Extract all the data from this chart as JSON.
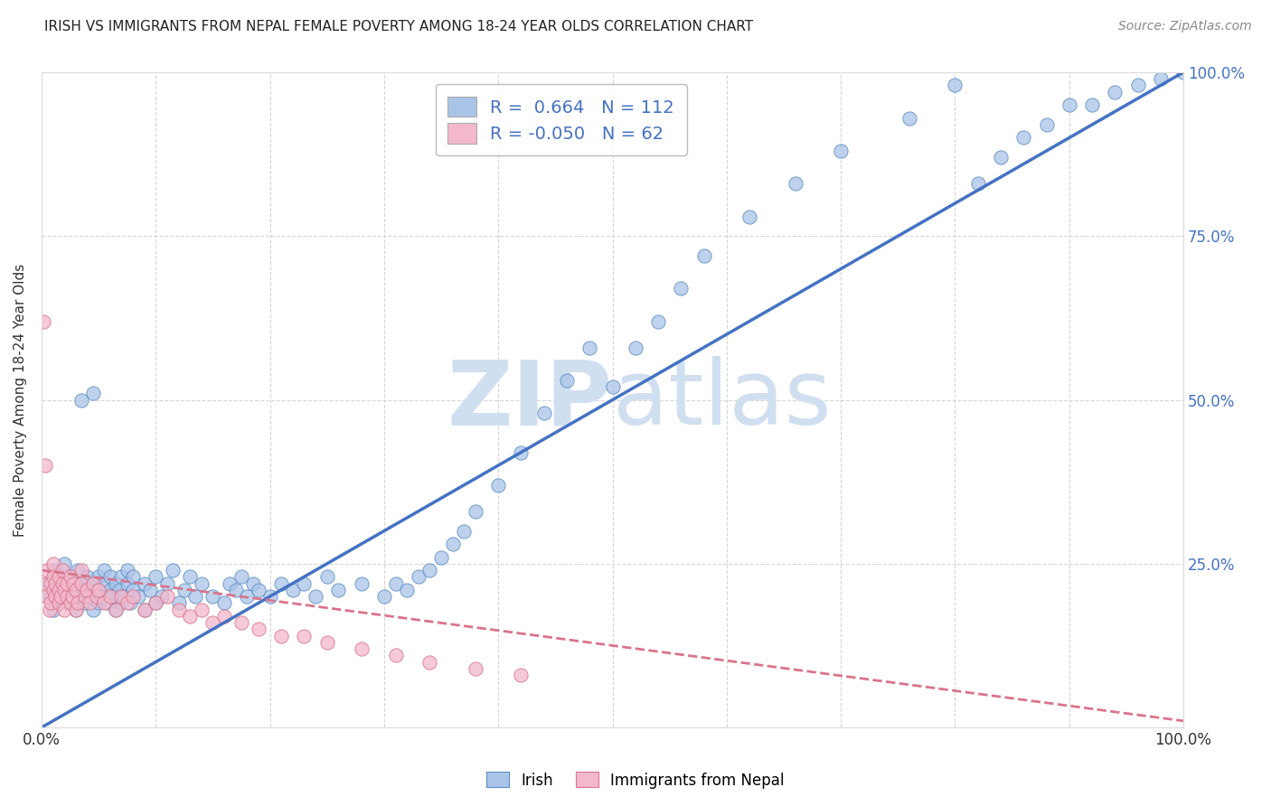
{
  "title": "IRISH VS IMMIGRANTS FROM NEPAL FEMALE POVERTY AMONG 18-24 YEAR OLDS CORRELATION CHART",
  "source": "Source: ZipAtlas.com",
  "ylabel": "Female Poverty Among 18-24 Year Olds",
  "legend_irish_label": "Irish",
  "legend_nepal_label": "Immigrants from Nepal",
  "irish_R": 0.664,
  "irish_N": 112,
  "nepal_R": -0.05,
  "nepal_N": 62,
  "irish_color": "#aac4e8",
  "irish_edge_color": "#5b8ec4",
  "irish_line_color": "#4472c4",
  "nepal_color": "#f4b8cc",
  "nepal_edge_color": "#d9748a",
  "nepal_line_color": "#d9748a",
  "axis_color": "#4472c4",
  "text_color": "#333333",
  "grid_color": "#cccccc",
  "background_color": "#ffffff",
  "watermark_color": "#d0dff0",
  "xmin": 0.0,
  "xmax": 1.0,
  "ymin": 0.0,
  "ymax": 1.0,
  "x_ticks": [
    0.0,
    0.1,
    0.2,
    0.3,
    0.4,
    0.5,
    0.6,
    0.7,
    0.8,
    0.9,
    1.0
  ],
  "y_ticks": [
    0.0,
    0.25,
    0.5,
    0.75,
    1.0
  ],
  "irish_line_x": [
    0.0,
    1.0
  ],
  "irish_line_y": [
    0.0,
    1.0
  ],
  "nepal_line_x": [
    0.0,
    1.0
  ],
  "nepal_line_y": [
    0.24,
    0.01
  ],
  "irish_scatter_x": [
    0.005,
    0.008,
    0.01,
    0.01,
    0.012,
    0.015,
    0.015,
    0.018,
    0.02,
    0.02,
    0.022,
    0.025,
    0.025,
    0.028,
    0.03,
    0.03,
    0.032,
    0.035,
    0.035,
    0.038,
    0.04,
    0.04,
    0.042,
    0.045,
    0.045,
    0.048,
    0.05,
    0.05,
    0.052,
    0.055,
    0.055,
    0.058,
    0.06,
    0.06,
    0.062,
    0.065,
    0.065,
    0.068,
    0.07,
    0.07,
    0.072,
    0.075,
    0.075,
    0.078,
    0.08,
    0.08,
    0.085,
    0.09,
    0.09,
    0.095,
    0.1,
    0.1,
    0.105,
    0.11,
    0.115,
    0.12,
    0.125,
    0.13,
    0.135,
    0.14,
    0.15,
    0.16,
    0.165,
    0.17,
    0.175,
    0.18,
    0.185,
    0.19,
    0.2,
    0.21,
    0.22,
    0.23,
    0.24,
    0.25,
    0.26,
    0.28,
    0.3,
    0.31,
    0.32,
    0.33,
    0.34,
    0.35,
    0.36,
    0.37,
    0.38,
    0.4,
    0.42,
    0.44,
    0.46,
    0.48,
    0.5,
    0.52,
    0.54,
    0.56,
    0.58,
    0.62,
    0.66,
    0.7,
    0.76,
    0.8,
    0.82,
    0.84,
    0.86,
    0.88,
    0.9,
    0.92,
    0.94,
    0.96,
    0.98,
    1.0,
    0.035,
    0.045
  ],
  "irish_scatter_y": [
    0.22,
    0.2,
    0.24,
    0.18,
    0.21,
    0.19,
    0.23,
    0.2,
    0.22,
    0.25,
    0.19,
    0.21,
    0.23,
    0.2,
    0.22,
    0.18,
    0.24,
    0.2,
    0.22,
    0.19,
    0.21,
    0.23,
    0.2,
    0.22,
    0.18,
    0.21,
    0.19,
    0.23,
    0.2,
    0.22,
    0.24,
    0.19,
    0.21,
    0.23,
    0.2,
    0.22,
    0.18,
    0.21,
    0.19,
    0.23,
    0.2,
    0.22,
    0.24,
    0.19,
    0.21,
    0.23,
    0.2,
    0.22,
    0.18,
    0.21,
    0.19,
    0.23,
    0.2,
    0.22,
    0.24,
    0.19,
    0.21,
    0.23,
    0.2,
    0.22,
    0.2,
    0.19,
    0.22,
    0.21,
    0.23,
    0.2,
    0.22,
    0.21,
    0.2,
    0.22,
    0.21,
    0.22,
    0.2,
    0.23,
    0.21,
    0.22,
    0.2,
    0.22,
    0.21,
    0.23,
    0.24,
    0.26,
    0.28,
    0.3,
    0.33,
    0.37,
    0.42,
    0.48,
    0.53,
    0.58,
    0.52,
    0.58,
    0.62,
    0.67,
    0.72,
    0.78,
    0.83,
    0.88,
    0.93,
    0.98,
    0.83,
    0.87,
    0.9,
    0.92,
    0.95,
    0.95,
    0.97,
    0.98,
    0.99,
    1.0,
    0.5,
    0.51
  ],
  "nepal_scatter_x": [
    0.003,
    0.005,
    0.005,
    0.007,
    0.008,
    0.008,
    0.01,
    0.01,
    0.01,
    0.012,
    0.012,
    0.015,
    0.015,
    0.015,
    0.017,
    0.018,
    0.018,
    0.02,
    0.02,
    0.022,
    0.022,
    0.025,
    0.025,
    0.027,
    0.028,
    0.03,
    0.03,
    0.032,
    0.035,
    0.035,
    0.038,
    0.04,
    0.042,
    0.045,
    0.048,
    0.05,
    0.055,
    0.06,
    0.065,
    0.07,
    0.075,
    0.08,
    0.09,
    0.1,
    0.11,
    0.12,
    0.13,
    0.14,
    0.15,
    0.16,
    0.175,
    0.19,
    0.21,
    0.23,
    0.25,
    0.28,
    0.31,
    0.34,
    0.38,
    0.42,
    0.002,
    0.003
  ],
  "nepal_scatter_y": [
    0.22,
    0.2,
    0.24,
    0.18,
    0.22,
    0.19,
    0.21,
    0.23,
    0.25,
    0.2,
    0.22,
    0.19,
    0.21,
    0.23,
    0.2,
    0.22,
    0.24,
    0.18,
    0.21,
    0.2,
    0.22,
    0.19,
    0.23,
    0.2,
    0.22,
    0.18,
    0.21,
    0.19,
    0.22,
    0.24,
    0.2,
    0.21,
    0.19,
    0.22,
    0.2,
    0.21,
    0.19,
    0.2,
    0.18,
    0.2,
    0.19,
    0.2,
    0.18,
    0.19,
    0.2,
    0.18,
    0.17,
    0.18,
    0.16,
    0.17,
    0.16,
    0.15,
    0.14,
    0.14,
    0.13,
    0.12,
    0.11,
    0.1,
    0.09,
    0.08,
    0.62,
    0.4
  ]
}
